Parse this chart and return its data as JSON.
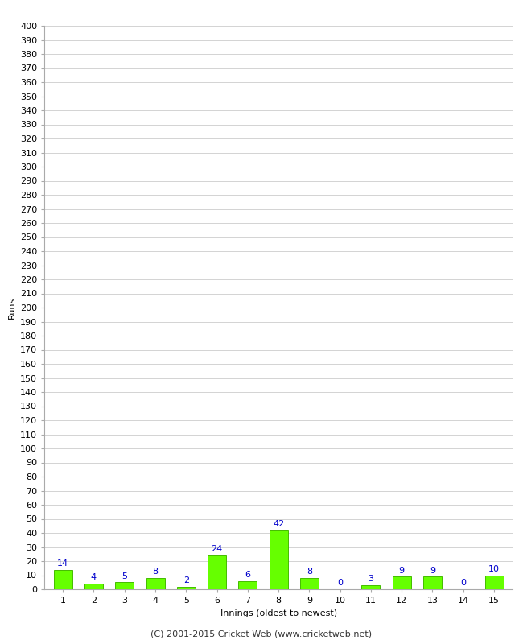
{
  "xlabel": "Innings (oldest to newest)",
  "ylabel": "Runs",
  "categories": [
    1,
    2,
    3,
    4,
    5,
    6,
    7,
    8,
    9,
    10,
    11,
    12,
    13,
    14,
    15
  ],
  "values": [
    14,
    4,
    5,
    8,
    2,
    24,
    6,
    42,
    8,
    0,
    3,
    9,
    9,
    0,
    10
  ],
  "bar_color": "#66ff00",
  "bar_edge_color": "#44bb00",
  "label_color": "#0000cc",
  "ylim": [
    0,
    400
  ],
  "background_color": "#ffffff",
  "grid_color": "#cccccc",
  "footer": "(C) 2001-2015 Cricket Web (www.cricketweb.net)",
  "tick_fontsize": 8,
  "label_fontsize": 8,
  "footer_fontsize": 8
}
